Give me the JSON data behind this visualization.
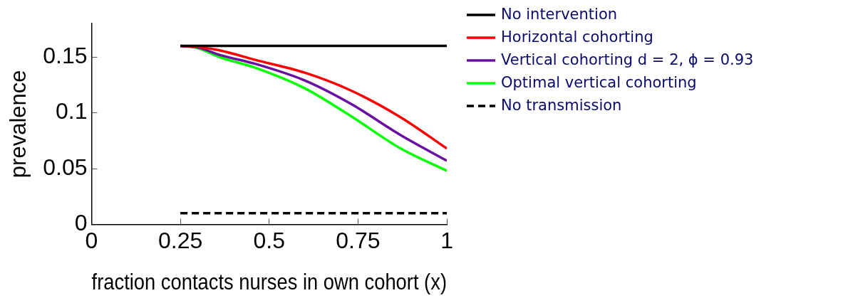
{
  "chart_data": {
    "type": "line",
    "xlabel": "fraction contacts nurses in own cohort (x)",
    "ylabel": "prevalence",
    "xlim": [
      0,
      1
    ],
    "xticks": [
      0,
      0.25,
      0.5,
      0.75,
      1
    ],
    "ylim": [
      0,
      0.18
    ],
    "yticks": [
      0,
      0.05,
      0.1,
      0.15
    ],
    "grid": false,
    "legend": "top right",
    "marker": "none",
    "x": [
      0.25,
      0.3,
      0.36,
      0.46,
      0.6,
      0.73,
      0.87,
      1
    ],
    "series": [
      {
        "name": "No intervention",
        "color": "#000000",
        "values": [
          0.16,
          0.16,
          0.16,
          0.16,
          0.16,
          0.16,
          0.16,
          0.16
        ]
      },
      {
        "name": "Horizontal cohorting",
        "color": "#ff0000",
        "values": [
          0.16,
          0.159,
          0.156,
          0.1475,
          0.136,
          0.12,
          0.096,
          0.068
        ]
      },
      {
        "name": "Vertical cohorting d = 2, ϕ = 0.93",
        "color": "#6a10a0",
        "values": [
          0.16,
          0.1585,
          0.152,
          0.144,
          0.129,
          0.108,
          0.08,
          0.057
        ]
      },
      {
        "name": "Optimal vertical cohorting",
        "color": "#00ff00",
        "values": [
          0.16,
          0.158,
          0.15,
          0.1405,
          0.122,
          0.097,
          0.068,
          0.048
        ]
      },
      {
        "name": "No transmission",
        "color": "#000000",
        "line_style": "dashed",
        "values": [
          0.01,
          0.01,
          0.01,
          0.01,
          0.01,
          0.01,
          0.01,
          0.01
        ]
      }
    ]
  }
}
